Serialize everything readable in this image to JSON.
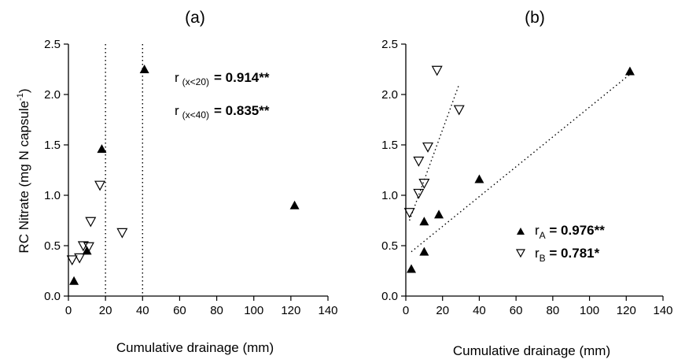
{
  "chart_data": [
    {
      "type": "scatter",
      "panel_label": "(a)",
      "xlabel": "Cumulative drainage (mm)",
      "ylabel": "RC Nitrate (mg N capsule-1)",
      "ylabel_main": "RC Nitrate (mg N capsule",
      "ylabel_sup": "-1",
      "ylabel_end": ")",
      "xlim": [
        0,
        140
      ],
      "ylim": [
        0,
        2.5
      ],
      "xticks": [
        "0",
        "20",
        "40",
        "60",
        "80",
        "100",
        "120",
        "140"
      ],
      "yticks": [
        "0.0",
        "0.5",
        "1.0",
        "1.5",
        "2.0",
        "2.5"
      ],
      "grid": false,
      "series": [
        {
          "marker": "filled-triangle-up",
          "points": [
            [
              3,
              0.15
            ],
            [
              10,
              0.45
            ],
            [
              18,
              1.46
            ],
            [
              41,
              2.25
            ],
            [
              122,
              0.9
            ]
          ]
        },
        {
          "marker": "open-triangle-down",
          "points": [
            [
              2,
              0.36
            ],
            [
              6,
              0.38
            ],
            [
              8,
              0.5
            ],
            [
              11,
              0.49
            ],
            [
              12,
              0.74
            ],
            [
              17,
              1.1
            ],
            [
              29,
              0.63
            ]
          ]
        }
      ],
      "reference_lines": [
        {
          "axis": "x",
          "value": 20,
          "style": "dotted"
        },
        {
          "axis": "x",
          "value": 40,
          "style": "dotted"
        }
      ],
      "annotations": [
        {
          "prefix": "r",
          "subscript": "(x<20)",
          "text": "= 0.914**"
        },
        {
          "prefix": "r",
          "subscript": "(x<40)",
          "text": "= 0.835**"
        }
      ]
    },
    {
      "type": "scatter",
      "panel_label": "(b)",
      "xlabel": "Cumulative drainage (mm)",
      "xlim": [
        0,
        140
      ],
      "ylim": [
        0,
        2.5
      ],
      "xticks": [
        "0",
        "20",
        "40",
        "60",
        "80",
        "100",
        "120",
        "140"
      ],
      "yticks": [
        "0.0",
        "0.5",
        "1.0",
        "1.5",
        "2.0",
        "2.5"
      ],
      "grid": false,
      "series": [
        {
          "marker": "filled-triangle-up",
          "points": [
            [
              3,
              0.27
            ],
            [
              10,
              0.44
            ],
            [
              10,
              0.74
            ],
            [
              18,
              0.81
            ],
            [
              40,
              1.16
            ],
            [
              122,
              2.23
            ]
          ],
          "trend": {
            "style": "dotted",
            "from": [
              3,
              0.44
            ],
            "to": [
              122,
              2.2
            ]
          }
        },
        {
          "marker": "open-triangle-down",
          "points": [
            [
              2,
              0.83
            ],
            [
              7,
              1.34
            ],
            [
              7,
              1.02
            ],
            [
              10,
              1.12
            ],
            [
              12,
              1.48
            ],
            [
              17,
              2.24
            ],
            [
              29,
              1.85
            ]
          ],
          "trend": {
            "style": "dotted",
            "from": [
              2,
              0.75
            ],
            "to": [
              29,
              2.1
            ]
          }
        }
      ],
      "legend": {
        "position": "bottom-right",
        "entries": [
          {
            "prefix": "r",
            "subscript": "A",
            "text": " = 0.976**"
          },
          {
            "prefix": "r",
            "subscript": "B",
            "text": " = 0.781*"
          }
        ]
      }
    }
  ]
}
